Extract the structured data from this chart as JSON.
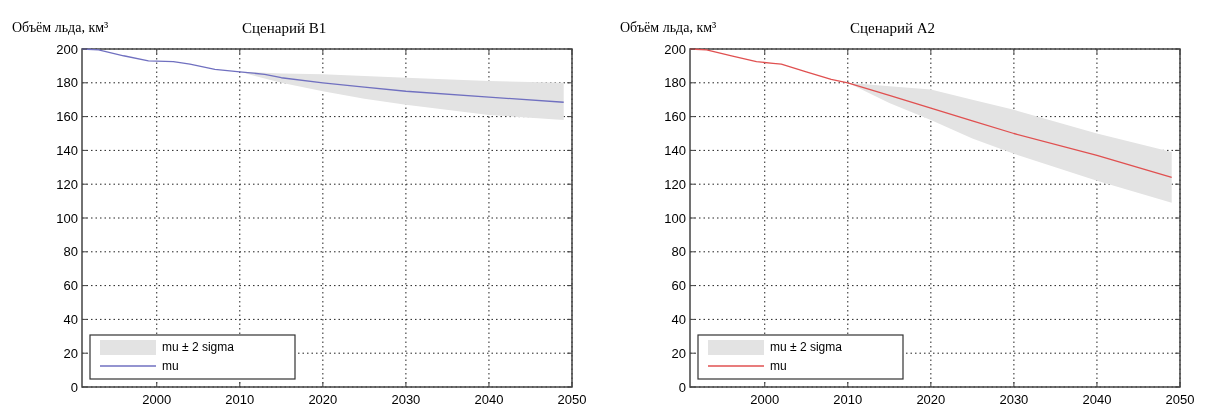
{
  "chart_data": [
    {
      "type": "line",
      "title": "Сценарий B1",
      "ylabel": "Объём льда, км³",
      "xlim": [
        1991,
        2050
      ],
      "ylim": [
        0,
        200
      ],
      "xticks": [
        2000,
        2010,
        2020,
        2030,
        2040,
        2050
      ],
      "yticks": [
        0,
        20,
        40,
        60,
        80,
        100,
        120,
        140,
        160,
        180,
        200
      ],
      "grid": true,
      "legend": "bottom left",
      "series": [
        {
          "type": "area",
          "name": "mu ± 2 sigma",
          "color": "#e3e3e3"
        },
        {
          "type": "line",
          "name": "mu",
          "color": "#7070c0",
          "x": [
            1991,
            1993,
            1996,
            1999,
            2002,
            2004,
            2007,
            2010,
            2013,
            2015,
            2020,
            2025,
            2030,
            2040,
            2049
          ],
          "values": [
            200,
            199.5,
            196,
            193,
            192.5,
            191,
            188,
            186.5,
            185,
            183,
            180,
            177.5,
            175,
            171.5,
            168.5
          ],
          "lower": [
            null,
            null,
            null,
            null,
            null,
            null,
            null,
            186.5,
            182.5,
            180,
            175,
            170.5,
            167,
            161,
            158
          ],
          "upper": [
            null,
            null,
            null,
            null,
            null,
            null,
            null,
            186.5,
            186,
            185.5,
            185,
            184,
            183,
            181,
            180
          ]
        }
      ]
    },
    {
      "type": "line",
      "title": "Сценарий A2",
      "ylabel": "Объём льда, км³",
      "xlim": [
        1991,
        2050
      ],
      "ylim": [
        0,
        200
      ],
      "xticks": [
        2000,
        2010,
        2020,
        2030,
        2040,
        2050
      ],
      "yticks": [
        0,
        20,
        40,
        60,
        80,
        100,
        120,
        140,
        160,
        180,
        200
      ],
      "grid": true,
      "legend": "bottom left",
      "series": [
        {
          "type": "area",
          "name": "mu ± 2 sigma",
          "color": "#e3e3e3"
        },
        {
          "type": "line",
          "name": "mu",
          "color": "#e05050",
          "x": [
            1991,
            1993,
            1996,
            1999,
            2001,
            2002,
            2005,
            2008,
            2010,
            2015,
            2020,
            2025,
            2030,
            2040,
            2049
          ],
          "values": [
            200,
            199.5,
            196,
            192.5,
            191.5,
            191,
            186.5,
            182,
            180,
            172.5,
            165,
            157.5,
            150,
            137,
            124
          ],
          "lower": [
            null,
            null,
            null,
            null,
            null,
            null,
            null,
            null,
            180,
            168,
            158,
            147,
            138,
            122,
            109
          ],
          "upper": [
            null,
            null,
            null,
            null,
            null,
            null,
            null,
            null,
            180,
            178,
            176,
            170,
            164,
            150,
            139
          ]
        }
      ]
    }
  ]
}
